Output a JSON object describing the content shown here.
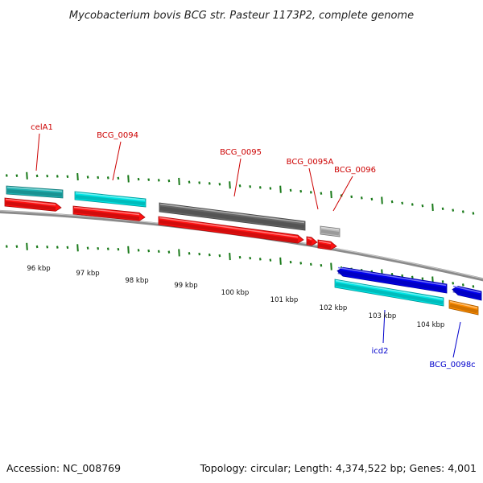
{
  "title": "Mycobacterium bovis BCG str. Pasteur 1173P2, complete genome",
  "footer": {
    "accession": "Accession: NC_008769",
    "summary": "Topology: circular; Length: 4,374,522 bp; Genes: 4,001"
  },
  "colors": {
    "forward_label": "#cc0000",
    "reverse_label": "#0000cc",
    "tick": "#1a7a1a",
    "backbone": "#808080"
  },
  "axis_labels": [
    "96 kbp",
    "97 kbp",
    "98 kbp",
    "99 kbp",
    "100 kbp",
    "101 kbp",
    "102 kbp",
    "103 kbp",
    "104 kbp"
  ],
  "gene_labels": [
    {
      "name": "celA1",
      "strand": "forward"
    },
    {
      "name": "BCG_0094",
      "strand": "forward"
    },
    {
      "name": "BCG_0095",
      "strand": "forward"
    },
    {
      "name": "BCG_0095A",
      "strand": "forward"
    },
    {
      "name": "BCG_0096",
      "strand": "forward"
    },
    {
      "name": "icd2",
      "strand": "reverse"
    },
    {
      "name": "BCG_0098c",
      "strand": "reverse"
    }
  ],
  "features": [
    {
      "type": "gene",
      "strand": "forward",
      "color": "#20b2b2"
    },
    {
      "type": "cds",
      "strand": "forward",
      "color": "#ff1111"
    },
    {
      "type": "gene",
      "strand": "forward",
      "color": "#00e5e5"
    },
    {
      "type": "cds",
      "strand": "forward",
      "color": "#ff1111"
    },
    {
      "type": "pseudogene",
      "strand": "forward",
      "color": "#666666"
    },
    {
      "type": "cds",
      "strand": "forward",
      "color": "#ff1111"
    },
    {
      "type": "cds",
      "strand": "forward",
      "color": "#ff1111"
    },
    {
      "type": "gene",
      "strand": "forward",
      "color": "#bbbbbb"
    },
    {
      "type": "cds",
      "strand": "forward",
      "color": "#ff1111"
    },
    {
      "type": "cds",
      "strand": "reverse",
      "color": "#0000ee"
    },
    {
      "type": "gene",
      "strand": "reverse",
      "color": "#00e5e5"
    },
    {
      "type": "cds",
      "strand": "reverse",
      "color": "#0000ee"
    },
    {
      "type": "gene",
      "strand": "reverse",
      "color": "#ff8c00"
    }
  ]
}
